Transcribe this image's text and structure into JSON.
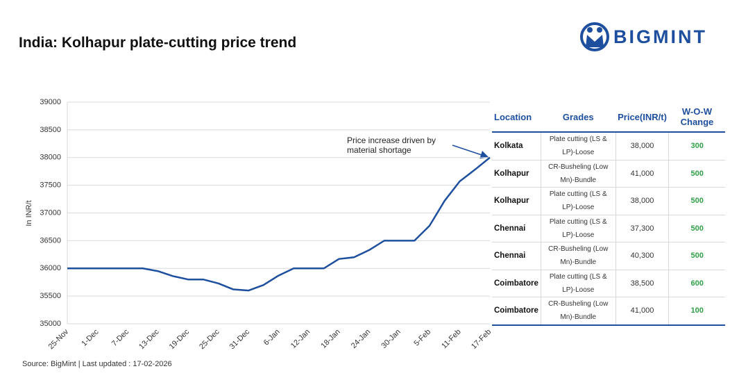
{
  "brand": "BIGMINT",
  "source": "Source: BigMint | Last updated : 17-02-2026",
  "chart_data": {
    "type": "line",
    "title": "India: Kolhapur plate-cutting price trend",
    "y_label": "In INR/t",
    "annotation": "Price increase driven by material shortage",
    "categories": [
      "25-Nov",
      null,
      "1-Dec",
      null,
      "7-Dec",
      null,
      "13-Dec",
      null,
      "19-Dec",
      null,
      "25-Dec",
      null,
      "31-Dec",
      null,
      "6-Jan",
      null,
      "12-Jan",
      null,
      "18-Jan",
      null,
      "24-Jan",
      null,
      "30-Jan",
      null,
      "5-Feb",
      null,
      "11-Feb",
      null,
      "17-Feb"
    ],
    "series": [
      {
        "name": "Kolhapur plate-cutting",
        "color": "#1d4f9e",
        "values": [
          36000,
          36000,
          36000,
          36000,
          36000,
          36000,
          35950,
          35860,
          35800,
          35800,
          35730,
          35620,
          35600,
          35700,
          35870,
          36000,
          36000,
          36000,
          36170,
          36200,
          36330,
          36500,
          36500,
          36500,
          36770,
          37220,
          37570,
          37780,
          38000
        ]
      }
    ],
    "ylim": [
      35000,
      39000
    ],
    "yticks": [
      35000,
      35500,
      36000,
      36500,
      37000,
      37500,
      38000,
      38500,
      39000
    ],
    "grid": true
  },
  "table": {
    "headers": [
      "Location",
      "Grades",
      "Price(INR/t)",
      "W-O-W Change"
    ],
    "rows": [
      [
        "Kolkata",
        "Plate cutting (LS & LP)-Loose",
        "38,000",
        "300"
      ],
      [
        "Kolhapur",
        "CR-Busheling (Low Mn)-Bundle",
        "41,000",
        "500"
      ],
      [
        "Kolhapur",
        "Plate cutting (LS & LP)-Loose",
        "38,000",
        "500"
      ],
      [
        "Chennai",
        "Plate cutting (LS & LP)-Loose",
        "37,300",
        "500"
      ],
      [
        "Chennai",
        "CR-Busheling (Low Mn)-Bundle",
        "40,300",
        "500"
      ],
      [
        "Coimbatore",
        "Plate cutting (LS & LP)-Loose",
        "38,500",
        "600"
      ],
      [
        "Coimbatore",
        "CR-Busheling (Low Mn)-Bundle",
        "41,000",
        "100"
      ]
    ]
  }
}
